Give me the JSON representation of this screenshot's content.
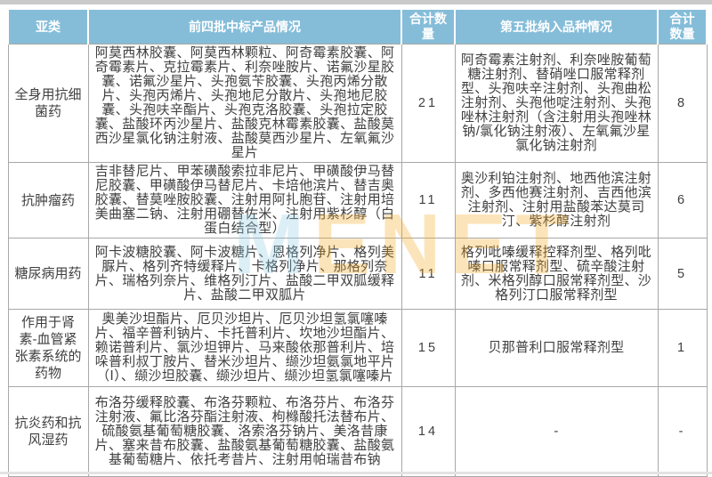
{
  "chart_data": {
    "type": "table",
    "columns": [
      "亚类",
      "前四批中标产品情况",
      "合计数量",
      "第五批纳入品种情况",
      "合计数量"
    ],
    "rows": [
      [
        "全身用抗细菌药",
        "阿莫西林胶囊、阿莫西林颗粒、阿奇霉素胶囊、阿奇霉素片、克拉霉素片、利奈唑胺片、诺氟沙星胶囊、诺氟沙星片、头孢氨苄胶囊、头孢丙烯分散片、头孢丙烯片、头孢地尼分散片、头孢地尼胶囊、头孢呋辛酯片、头孢克洛胶囊、头孢拉定胶囊、盐酸环丙沙星片、盐酸克林霉素胶囊、盐酸莫西沙星氯化钠注射液、盐酸莫西沙星片、左氧氟沙星片",
        "21",
        "阿奇霉素注射剂、利奈唑胺葡萄糖注射剂、替硝唑口服常释剂型、头孢呋辛注射剂、头孢曲松注射剂、头孢他啶注射剂、头孢唑林注射剂（含注射用头孢唑林钠/氯化钠注射液）、左氧氟沙星氯化钠注射剂",
        "8"
      ],
      [
        "抗肿瘤药",
        "吉非替尼片、甲苯磺酸索拉非尼片、甲磺酸伊马替尼胶囊、甲磺酸伊马替尼片、卡培他滨片、替吉奥胶囊、替莫唑胺胶囊、注射用阿扎胞苷、注射用培美曲塞二钠、注射用硼替佐米、注射用紫杉醇（白蛋白结合型）",
        "11",
        "奥沙利铂注射剂、地西他滨注射剂、多西他赛注射剂、吉西他滨注射剂、注射用盐酸苯达莫司汀、紫杉醇注射剂",
        "6"
      ],
      [
        "糖尿病用药",
        "阿卡波糖胶囊、阿卡波糖片、恩格列净片、格列美脲片、格列齐特缓释片、卡格列净片、那格列奈片、瑞格列奈片、维格列汀片、盐酸二甲双胍缓释片、盐酸二甲双胍片",
        "11",
        "格列吡嗪缓释控释剂型、格列吡嗪口服常释剂型、硫辛酸注射剂、米格列醇口服常释剂型、沙格列汀口服常释剂型",
        "5"
      ],
      [
        "作用于肾素-血管紧张素系统的药物",
        "奥美沙坦酯片、厄贝沙坦片、厄贝沙坦氢氯噻嗪片、福辛普利钠片、卡托普利片、坎地沙坦酯片、赖诺普利片、氯沙坦钾片、马来酸依那普利片、培哚普利叔丁胺片、替米沙坦片、缬沙坦氨氯地平片（Ⅰ）、缬沙坦胶囊、缬沙坦片、缬沙坦氢氯噻嗪片",
        "15",
        "贝那普利口服常释剂型",
        "1"
      ],
      [
        "抗炎药和抗风湿药",
        "布洛芬缓释胶囊、布洛芬颗粒、布洛芬片、布洛芬注射液、氟比洛芬酯注射液、枸橼酸托法替布片、硫酸氨基葡萄糖胶囊、洛索洛芬钠片、美洛昔康片、塞来昔布胶囊、盐酸氨基葡萄糖胶囊、盐酸氨基葡萄糖片、依托考昔片、注射用帕瑞昔布钠",
        "14",
        "-",
        "-"
      ]
    ]
  },
  "watermark": {
    "part1": "M",
    "part2": "ENET",
    "color_blue": "#8fcbe4",
    "color_orange": "#f7a81d"
  },
  "styles": {
    "header_bg": "#85bdd9",
    "header_text": "#ffffff",
    "body_text": "#3f3f3f",
    "border": "#a8a8a8"
  }
}
